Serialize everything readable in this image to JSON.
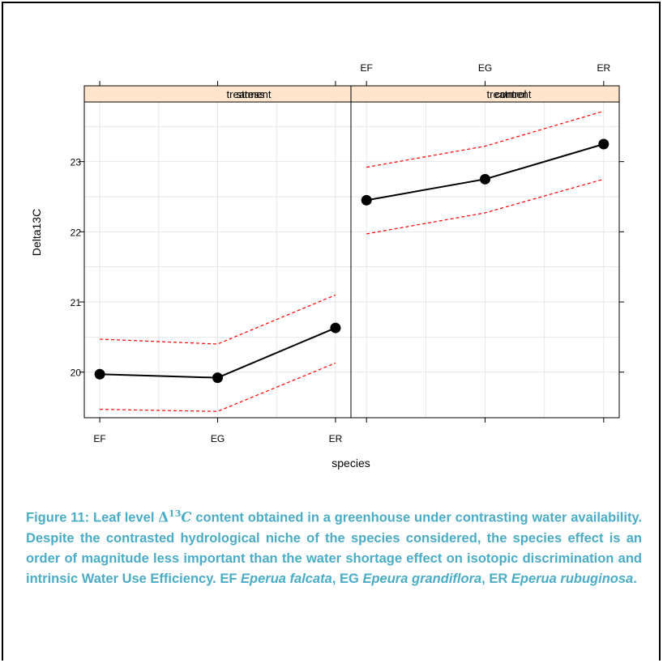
{
  "chart_data": {
    "type": "line",
    "layout": "two-panel lattice (trellis) plot",
    "ylabel": "Delta13C",
    "xlabel": "species",
    "categories": [
      "EF",
      "EG",
      "ER"
    ],
    "yticks": [
      20,
      21,
      22,
      23
    ],
    "ylim": [
      19.35,
      23.85
    ],
    "grid": true,
    "panels": [
      {
        "strip": "treatment stress",
        "strip_raw": "treatment",
        "strip_raw_b": "stress",
        "fit": [
          19.97,
          19.92,
          20.63
        ],
        "upper": [
          20.47,
          20.4,
          21.1
        ],
        "lower": [
          19.47,
          19.44,
          20.13
        ]
      },
      {
        "strip": "treatment control",
        "strip_raw": "treatment",
        "strip_raw_b": "control",
        "fit": [
          22.45,
          22.75,
          23.25
        ],
        "upper": [
          22.92,
          23.22,
          23.72
        ],
        "lower": [
          21.97,
          22.27,
          22.75
        ]
      }
    ],
    "colors": {
      "fit": "#000000",
      "ci": "#FF0000",
      "strip": "#FFE5CC",
      "grid": "#E6E6E6"
    }
  },
  "caption": {
    "label": "Figure 11:",
    "part1": "Leaf level",
    "delta": "Δ",
    "sup": "13",
    "c": "C",
    "part2": "content obtained in a greenhouse under contrasting water availability. Despite the contrasted hydrological niche of the species considered, the species effect is an order of magnitude less important than the water shortage effect on isotopic discrimination and intrinsic Water Use Efficiency.",
    "ef": "EF",
    "ef_name": "Eperua falcata",
    "sep1": ",",
    "eg": "EG",
    "eg_name": "Epeura grandiflora",
    "sep2": ",",
    "er": "ER",
    "er_name": "Eperua rubuginosa",
    "end": "."
  }
}
